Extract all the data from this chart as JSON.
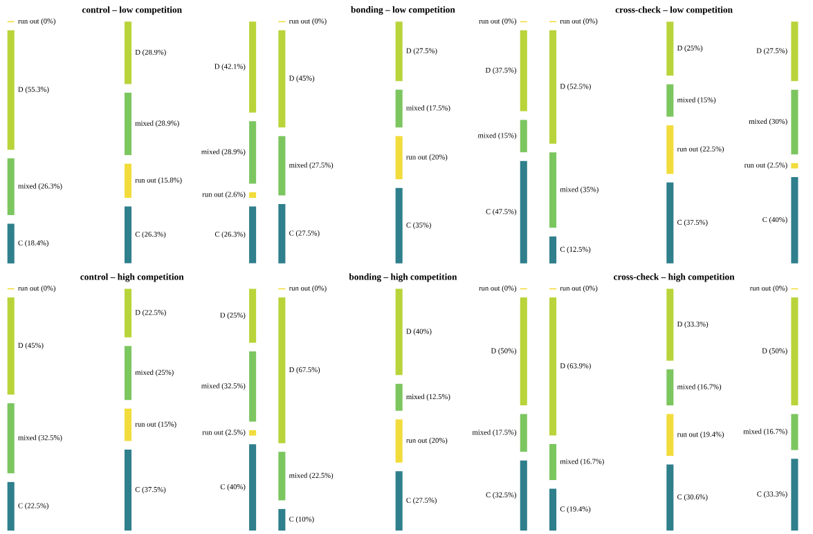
{
  "chart_data": [
    {
      "type": "other",
      "title": "control – low competition",
      "categories": [
        "run out",
        "D",
        "mixed",
        "C"
      ],
      "colors": [
        "#f2dc3c",
        "#b8d43a",
        "#7cc660",
        "#2f7f8c"
      ],
      "series": [
        {
          "values": [
            0,
            55.3,
            26.3,
            18.4
          ],
          "value_labels": [
            "(0%)",
            "(55.3%)",
            "(26.3%)",
            "(18.4%)"
          ]
        },
        {
          "values": [
            15.8,
            28.9,
            28.9,
            26.3
          ],
          "value_labels": [
            "(15.8%)",
            "(28.9%)",
            "(28.9%)",
            "(26.3%)"
          ]
        },
        {
          "values": [
            2.6,
            42.1,
            28.9,
            26.3
          ],
          "value_labels": [
            "(2.6%)",
            "(42.1%)",
            "(28.9%)",
            "(26.3%)"
          ]
        }
      ]
    },
    {
      "type": "other",
      "title": "bonding – low competition",
      "categories": [
        "run out",
        "D",
        "mixed",
        "C"
      ],
      "colors": [
        "#f2dc3c",
        "#b8d43a",
        "#7cc660",
        "#2f7f8c"
      ],
      "series": [
        {
          "values": [
            0,
            45,
            27.5,
            27.5
          ],
          "value_labels": [
            "(0%)",
            "(45%)",
            "(27.5%)",
            "(27.5%)"
          ]
        },
        {
          "values": [
            20,
            27.5,
            17.5,
            35
          ],
          "value_labels": [
            "(20%)",
            "(27.5%)",
            "(17.5%)",
            "(35%)"
          ]
        },
        {
          "values": [
            0,
            37.5,
            15,
            47.5
          ],
          "value_labels": [
            "(0%)",
            "(37.5%)",
            "(15%)",
            "(47.5%)"
          ]
        }
      ]
    },
    {
      "type": "other",
      "title": "cross-check – low competition",
      "categories": [
        "run out",
        "D",
        "mixed",
        "C"
      ],
      "colors": [
        "#f2dc3c",
        "#b8d43a",
        "#7cc660",
        "#2f7f8c"
      ],
      "series": [
        {
          "values": [
            0,
            52.5,
            35,
            12.5
          ],
          "value_labels": [
            "(0%)",
            "(52.5%)",
            "(35%)",
            "(12.5%)"
          ]
        },
        {
          "values": [
            22.5,
            25,
            15,
            37.5
          ],
          "value_labels": [
            "(22.5%)",
            "(25%)",
            "(15%)",
            "(37.5%)"
          ]
        },
        {
          "values": [
            2.5,
            27.5,
            30,
            40
          ],
          "value_labels": [
            "(2.5%)",
            "(27.5%)",
            "(30%)",
            "(40%)"
          ]
        }
      ]
    },
    {
      "type": "other",
      "title": "control – high competition",
      "categories": [
        "run out",
        "D",
        "mixed",
        "C"
      ],
      "colors": [
        "#f2dc3c",
        "#b8d43a",
        "#7cc660",
        "#2f7f8c"
      ],
      "series": [
        {
          "values": [
            0,
            45,
            32.5,
            22.5
          ],
          "value_labels": [
            "(0%)",
            "(45%)",
            "(32.5%)",
            "(22.5%)"
          ]
        },
        {
          "values": [
            15,
            22.5,
            25,
            37.5
          ],
          "value_labels": [
            "(15%)",
            "(22.5%)",
            "(25%)",
            "(37.5%)"
          ]
        },
        {
          "values": [
            2.5,
            25,
            32.5,
            40
          ],
          "value_labels": [
            "(2.5%)",
            "(25%)",
            "(32.5%)",
            "(40%)"
          ]
        }
      ]
    },
    {
      "type": "other",
      "title": "bonding – high competition",
      "categories": [
        "run out",
        "D",
        "mixed",
        "C"
      ],
      "colors": [
        "#f2dc3c",
        "#b8d43a",
        "#7cc660",
        "#2f7f8c"
      ],
      "series": [
        {
          "values": [
            0,
            67.5,
            22.5,
            10
          ],
          "value_labels": [
            "(0%)",
            "(67.5%)",
            "(22.5%)",
            "(10%)"
          ]
        },
        {
          "values": [
            20,
            40,
            12.5,
            27.5
          ],
          "value_labels": [
            "(20%)",
            "(40%)",
            "(12.5%)",
            "(27.5%)"
          ]
        },
        {
          "values": [
            0,
            50,
            17.5,
            32.5
          ],
          "value_labels": [
            "(0%)",
            "(50%)",
            "(17.5%)",
            "(32.5%)"
          ]
        }
      ]
    },
    {
      "type": "other",
      "title": "cross-check – high competition",
      "categories": [
        "run out",
        "D",
        "mixed",
        "C"
      ],
      "colors": [
        "#f2dc3c",
        "#b8d43a",
        "#7cc660",
        "#2f7f8c"
      ],
      "series": [
        {
          "values": [
            0,
            63.9,
            16.7,
            19.4
          ],
          "value_labels": [
            "(0%)",
            "(63.9%)",
            "(16.7%)",
            "(19.4%)"
          ]
        },
        {
          "values": [
            19.4,
            33.3,
            16.7,
            30.6
          ],
          "value_labels": [
            "(19.4%)",
            "(33.3%)",
            "(16.7%)",
            "(30.6%)"
          ]
        },
        {
          "values": [
            0,
            50,
            16.7,
            33.3
          ],
          "value_labels": [
            "(0%)",
            "(50%)",
            "(16.7%)",
            "(33.3%)"
          ]
        }
      ]
    }
  ]
}
